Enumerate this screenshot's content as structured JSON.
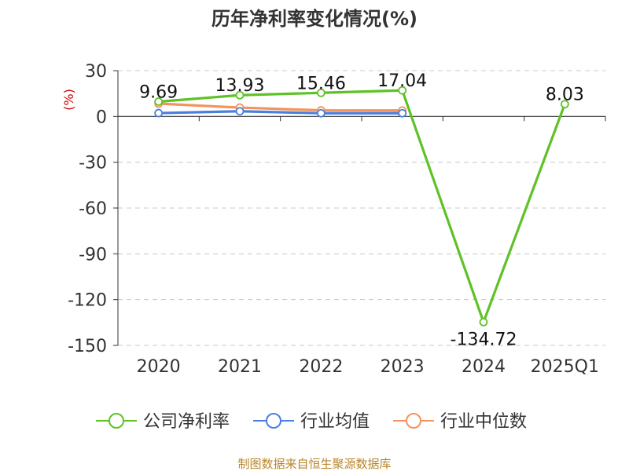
{
  "chart_data": {
    "type": "line",
    "title": "历年净利率变化情况(%)",
    "ylabel": "(%)",
    "categories": [
      "2020",
      "2021",
      "2022",
      "2023",
      "2024",
      "2025Q1"
    ],
    "ylim": [
      -150,
      30
    ],
    "yticks": [
      30,
      0,
      -30,
      -60,
      -90,
      -120,
      -150
    ],
    "grid": true,
    "legend_position": "bottom",
    "series": [
      {
        "name": "公司净利率",
        "color": "#5ec226",
        "values": [
          9.69,
          13.93,
          15.46,
          17.04,
          -134.72,
          8.03
        ],
        "labels": [
          "9.69",
          "13.93",
          "15.46",
          "17.04",
          "-134.72",
          "8.03"
        ]
      },
      {
        "name": "行业均值",
        "color": "#4a7fde",
        "values": [
          2.2,
          3.4,
          2.1,
          2.1,
          null,
          null
        ]
      },
      {
        "name": "行业中位数",
        "color": "#f4935b",
        "values": [
          8.4,
          5.8,
          4.0,
          3.9,
          null,
          null
        ]
      }
    ]
  },
  "source": "制图数据来自恒生聚源数据库"
}
